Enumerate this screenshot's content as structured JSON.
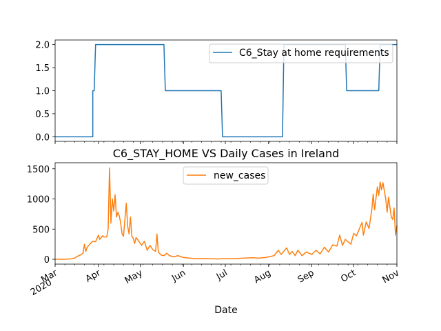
{
  "figure": {
    "xlabel": "Date",
    "x_ticks": [
      {
        "date": "2020-03-01",
        "label": "Mar",
        "sub": "2020"
      },
      {
        "date": "2020-04-01",
        "label": "Apr"
      },
      {
        "date": "2020-05-01",
        "label": "May"
      },
      {
        "date": "2020-06-01",
        "label": "Jun"
      },
      {
        "date": "2020-07-01",
        "label": "Jul"
      },
      {
        "date": "2020-08-01",
        "label": "Aug"
      },
      {
        "date": "2020-09-01",
        "label": "Sep"
      },
      {
        "date": "2020-10-01",
        "label": "Oct"
      },
      {
        "date": "2020-11-01",
        "label": "Nov"
      }
    ],
    "x_range": [
      "2020-03-01",
      "2020-11-01"
    ]
  },
  "chart_data": [
    {
      "type": "line",
      "title": "",
      "xlabel": "",
      "ylabel": "",
      "ylim": [
        -0.1,
        2.1
      ],
      "yticks": [
        "0.0",
        "0.5",
        "1.0",
        "1.5",
        "2.0"
      ],
      "legend": "upper right",
      "series": [
        {
          "name": "C6_Stay at home requirements",
          "color": "#1f77b4",
          "step_points": [
            [
              "2020-03-01",
              0
            ],
            [
              "2020-03-28",
              0
            ],
            [
              "2020-03-28",
              1
            ],
            [
              "2020-03-29",
              1
            ],
            [
              "2020-03-30",
              2
            ],
            [
              "2020-05-18",
              2
            ],
            [
              "2020-05-19",
              1
            ],
            [
              "2020-06-28",
              1
            ],
            [
              "2020-06-29",
              0
            ],
            [
              "2020-08-11",
              0
            ],
            [
              "2020-08-12",
              2
            ],
            [
              "2020-09-25",
              2
            ],
            [
              "2020-09-26",
              1
            ],
            [
              "2020-10-19",
              1
            ],
            [
              "2020-10-20",
              2
            ],
            [
              "2020-11-01",
              2
            ]
          ]
        }
      ]
    },
    {
      "type": "line",
      "title": "C6_STAY_HOME VS Daily Cases in Ireland",
      "xlabel": "Date",
      "ylabel": "",
      "ylim": [
        -80,
        1600
      ],
      "yticks": [
        "0",
        "500",
        "1000",
        "1500"
      ],
      "legend": "upper center",
      "series": [
        {
          "name": "new_cases",
          "color": "#ff7f0e",
          "points": [
            [
              "2020-03-01",
              0
            ],
            [
              "2020-03-08",
              2
            ],
            [
              "2020-03-12",
              5
            ],
            [
              "2020-03-15",
              20
            ],
            [
              "2020-03-17",
              50
            ],
            [
              "2020-03-19",
              70
            ],
            [
              "2020-03-21",
              100
            ],
            [
              "2020-03-22",
              250
            ],
            [
              "2020-03-23",
              130
            ],
            [
              "2020-03-24",
              200
            ],
            [
              "2020-03-26",
              255
            ],
            [
              "2020-03-28",
              300
            ],
            [
              "2020-03-30",
              290
            ],
            [
              "2020-04-01",
              400
            ],
            [
              "2020-04-02",
              330
            ],
            [
              "2020-04-04",
              390
            ],
            [
              "2020-04-05",
              370
            ],
            [
              "2020-04-07",
              370
            ],
            [
              "2020-04-08",
              500
            ],
            [
              "2020-04-09",
              1515
            ],
            [
              "2020-04-10",
              600
            ],
            [
              "2020-04-11",
              1000
            ],
            [
              "2020-04-12",
              800
            ],
            [
              "2020-04-13",
              1070
            ],
            [
              "2020-04-14",
              700
            ],
            [
              "2020-04-15",
              780
            ],
            [
              "2020-04-16",
              720
            ],
            [
              "2020-04-17",
              600
            ],
            [
              "2020-04-18",
              420
            ],
            [
              "2020-04-19",
              380
            ],
            [
              "2020-04-21",
              930
            ],
            [
              "2020-04-22",
              550
            ],
            [
              "2020-04-23",
              420
            ],
            [
              "2020-04-24",
              700
            ],
            [
              "2020-04-25",
              380
            ],
            [
              "2020-04-26",
              350
            ],
            [
              "2020-04-27",
              260
            ],
            [
              "2020-04-28",
              360
            ],
            [
              "2020-04-30",
              300
            ],
            [
              "2020-05-02",
              230
            ],
            [
              "2020-05-04",
              300
            ],
            [
              "2020-05-06",
              150
            ],
            [
              "2020-05-08",
              230
            ],
            [
              "2020-05-10",
              160
            ],
            [
              "2020-05-12",
              130
            ],
            [
              "2020-05-13",
              420
            ],
            [
              "2020-05-14",
              120
            ],
            [
              "2020-05-16",
              70
            ],
            [
              "2020-05-18",
              60
            ],
            [
              "2020-05-20",
              100
            ],
            [
              "2020-05-22",
              60
            ],
            [
              "2020-05-25",
              40
            ],
            [
              "2020-05-28",
              60
            ],
            [
              "2020-06-01",
              30
            ],
            [
              "2020-06-05",
              20
            ],
            [
              "2020-06-10",
              10
            ],
            [
              "2020-06-15",
              15
            ],
            [
              "2020-06-20",
              10
            ],
            [
              "2020-06-25",
              5
            ],
            [
              "2020-06-30",
              10
            ],
            [
              "2020-07-05",
              10
            ],
            [
              "2020-07-10",
              15
            ],
            [
              "2020-07-15",
              20
            ],
            [
              "2020-07-20",
              25
            ],
            [
              "2020-07-25",
              20
            ],
            [
              "2020-07-30",
              30
            ],
            [
              "2020-08-01",
              40
            ],
            [
              "2020-08-05",
              60
            ],
            [
              "2020-08-08",
              150
            ],
            [
              "2020-08-10",
              80
            ],
            [
              "2020-08-14",
              190
            ],
            [
              "2020-08-16",
              80
            ],
            [
              "2020-08-18",
              130
            ],
            [
              "2020-08-20",
              60
            ],
            [
              "2020-08-22",
              150
            ],
            [
              "2020-08-25",
              60
            ],
            [
              "2020-08-28",
              120
            ],
            [
              "2020-09-01",
              80
            ],
            [
              "2020-09-04",
              150
            ],
            [
              "2020-09-07",
              90
            ],
            [
              "2020-09-10",
              200
            ],
            [
              "2020-09-13",
              120
            ],
            [
              "2020-09-16",
              240
            ],
            [
              "2020-09-19",
              220
            ],
            [
              "2020-09-21",
              400
            ],
            [
              "2020-09-23",
              230
            ],
            [
              "2020-09-25",
              330
            ],
            [
              "2020-09-27",
              290
            ],
            [
              "2020-09-29",
              250
            ],
            [
              "2020-10-01",
              430
            ],
            [
              "2020-10-03",
              390
            ],
            [
              "2020-10-05",
              500
            ],
            [
              "2020-10-07",
              610
            ],
            [
              "2020-10-08",
              400
            ],
            [
              "2020-10-10",
              620
            ],
            [
              "2020-10-12",
              510
            ],
            [
              "2020-10-14",
              820
            ],
            [
              "2020-10-15",
              1080
            ],
            [
              "2020-10-16",
              820
            ],
            [
              "2020-10-18",
              1200
            ],
            [
              "2020-10-19",
              1060
            ],
            [
              "2020-10-20",
              1280
            ],
            [
              "2020-10-21",
              1150
            ],
            [
              "2020-10-22",
              1270
            ],
            [
              "2020-10-24",
              1000
            ],
            [
              "2020-10-25",
              780
            ],
            [
              "2020-10-26",
              1030
            ],
            [
              "2020-10-27",
              860
            ],
            [
              "2020-10-28",
              700
            ],
            [
              "2020-10-29",
              660
            ],
            [
              "2020-10-30",
              850
            ],
            [
              "2020-10-31",
              400
            ],
            [
              "2020-11-01",
              560
            ]
          ]
        }
      ]
    }
  ]
}
